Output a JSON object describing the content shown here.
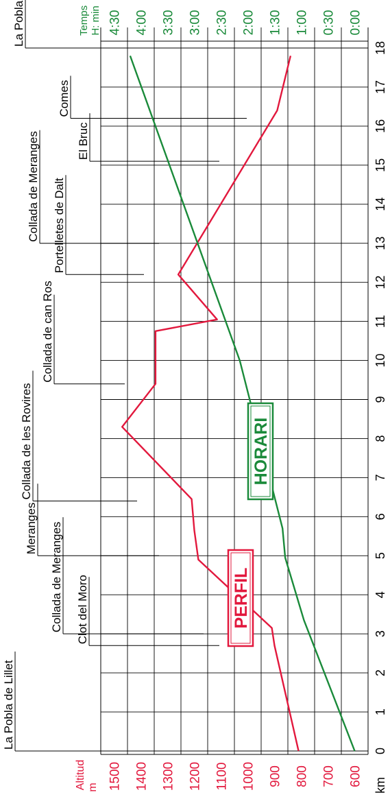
{
  "chart_data": {
    "type": "line",
    "x_axis": {
      "label": "km",
      "range": [
        0,
        18
      ],
      "ticks": [
        0,
        1,
        2,
        3,
        4,
        5,
        6,
        7,
        8,
        9,
        10,
        11,
        12,
        13,
        14,
        15,
        16,
        17,
        18
      ],
      "tick_labels": [
        "0",
        "1",
        "2",
        "3",
        "4",
        "5",
        "6",
        "7",
        "8",
        "9",
        "10",
        "11",
        "12",
        "13",
        "14",
        "15",
        "16",
        "17",
        "18"
      ]
    },
    "altitude_axis": {
      "label_line1": "Altitud",
      "label_line2": "m",
      "range": [
        550,
        1550
      ],
      "ticks": [
        600,
        700,
        800,
        900,
        1000,
        1100,
        1200,
        1300,
        1400,
        1500
      ],
      "tick_labels": [
        "600",
        "700",
        "800",
        "900",
        "1000",
        "1100",
        "1200",
        "1300",
        "1400",
        "1500"
      ]
    },
    "time_axis": {
      "label_line1": "Temps",
      "label_line2": "H: min",
      "ticks": [
        0,
        0.5,
        1,
        1.5,
        2,
        2.5,
        3,
        3.5,
        4,
        4.5
      ],
      "tick_labels": [
        "0:00",
        "0:30",
        "1:00",
        "1:30",
        "2:00",
        "2:30",
        "3:00",
        "3:30",
        "4:00",
        "4:30"
      ]
    },
    "series": [
      {
        "name": "PERFIL",
        "color": "#e2183d",
        "x": [
          0.0,
          2.7,
          3.15,
          4.9,
          5.65,
          6.45,
          8.3,
          9.4,
          10.75,
          11.05,
          12.2,
          16.4,
          17.8
        ],
        "y": [
          810,
          900,
          910,
          1185,
          1200,
          1210,
          1470,
          1345,
          1345,
          1115,
          1260,
          890,
          840
        ]
      },
      {
        "name": "HORARI",
        "color": "#1a8a3a",
        "x": [
          0.0,
          3.35,
          4.95,
          5.7,
          10.0,
          17.8
        ],
        "y": [
          0.0,
          0.95,
          1.3,
          1.35,
          2.15,
          4.2
        ]
      }
    ],
    "waypoints": [
      {
        "name": "La Pobla de Lillet",
        "km": 0.0
      },
      {
        "name": "Clot del Moro",
        "km": 2.7
      },
      {
        "name": "Collada de Meranges",
        "km": 3.0
      },
      {
        "name": "Meranges",
        "km": 5.0
      },
      {
        "name": "Collada de les Rovires",
        "km": 6.4
      },
      {
        "name": "Collada de can Ros",
        "km": 9.4
      },
      {
        "name": "Portelletes de Dalt",
        "km": 12.2
      },
      {
        "name": "Collada de Meranges",
        "km": 13.0
      },
      {
        "name": "El Bruc",
        "km": 15.1
      },
      {
        "name": "Comes",
        "km": 16.2
      },
      {
        "name": "La Pobla de Lillet",
        "km": 18.0
      }
    ],
    "grid": true
  }
}
